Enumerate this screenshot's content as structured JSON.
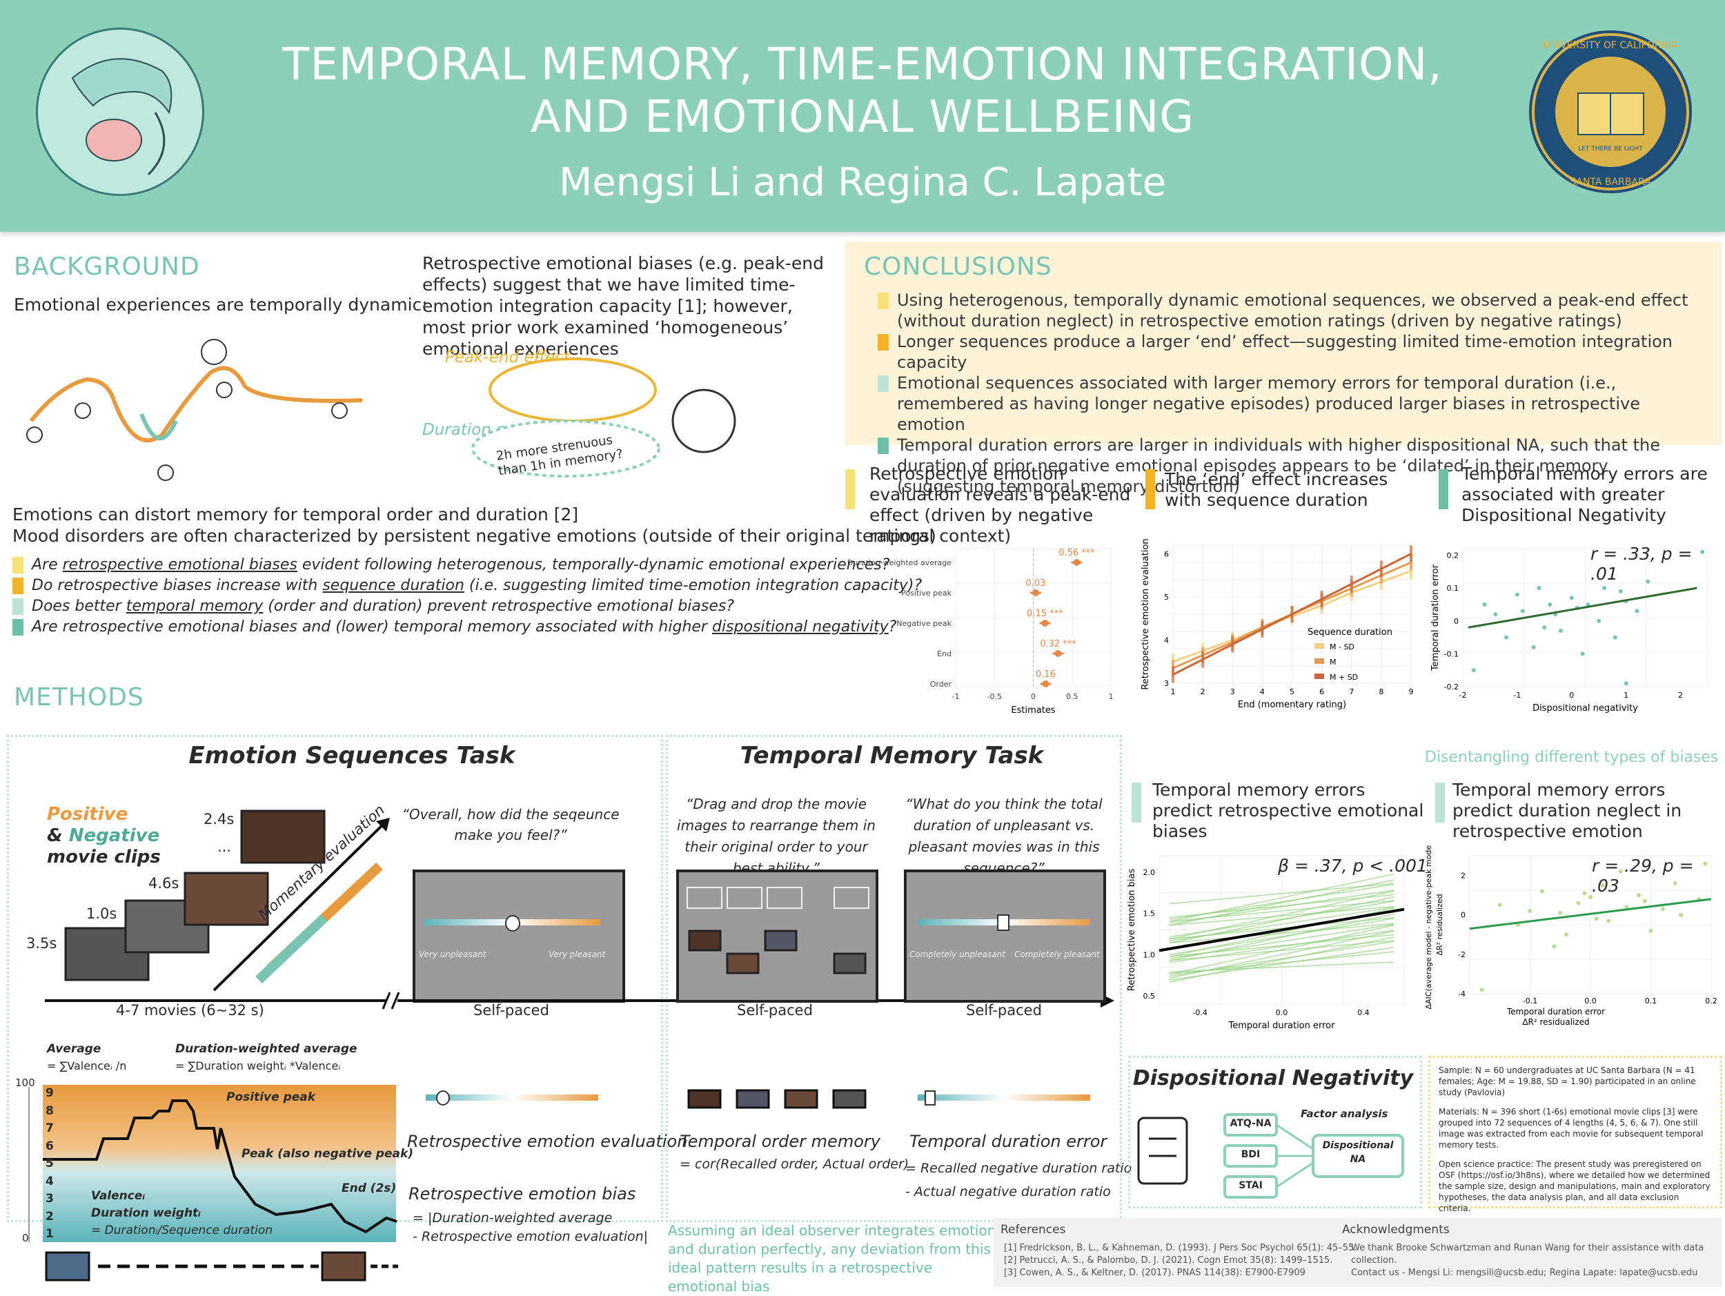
{
  "header": {
    "title_line1": "TEMPORAL MEMORY, TIME-EMOTION INTEGRATION,",
    "title_line2": "AND EMOTIONAL WELLBEING",
    "authors": "Mengsi Li and Regina C. Lapate",
    "seal_text_top": "UNIVERSITY OF CALIFORNIA",
    "seal_text_bottom": "SANTA BARBARA",
    "seal_banner": "LET THERE BE LIGHT"
  },
  "background": {
    "heading": "BACKGROUND",
    "intro": "Emotional experiences are temporally dynamic:",
    "right_text": "Retrospective emotional biases (e.g. peak-end effects) suggest that we have limited time-emotion integration capacity [1]; however, most prior work examined ‘homogeneous’ emotional experiences",
    "peak_end_label": "Peak-end effect",
    "duration_neglect_label": "Duration neglect",
    "bubble_text_1": "2h more strenuous",
    "bubble_text_2": "than 1h in memory?",
    "line1": "Emotions can distort memory for temporal order and duration [2]",
    "line2": "Mood disorders are often characterized by persistent negative emotions (outside of their original temporal context)",
    "questions": [
      {
        "color": "#f7e27a",
        "pre": "Are ",
        "u": "retrospective emotional biases",
        "post": " evident following heterogenous, temporally-dynamic emotional experiences?"
      },
      {
        "color": "#f2b32a",
        "pre": "Do retrospective biases increase with ",
        "u": "sequence duration",
        "post": " (i.e. suggesting limited time-emotion integration capacity)?"
      },
      {
        "color": "#bfe3d6",
        "pre": "Does better ",
        "u": "temporal memory",
        "post": " (order and duration) prevent retrospective emotional biases?"
      },
      {
        "color": "#6fbfa6",
        "pre": "Are retrospective emotional biases and (lower) temporal memory associated with higher ",
        "u": "dispositional negativity",
        "post": "?"
      }
    ]
  },
  "conclusions": {
    "heading": "CONCLUSIONS",
    "items": [
      {
        "color": "#f7e27a",
        "text": "Using heterogenous, temporally dynamic emotional sequences, we observed a peak-end effect (without duration neglect) in retrospective emotion ratings (driven by negative ratings)"
      },
      {
        "color": "#f2b32a",
        "text": "Longer sequences produce a larger ‘end’ effect—suggesting limited time-emotion integration capacity"
      },
      {
        "color": "#bfe3d6",
        "text": "Emotional sequences associated with larger memory errors for temporal duration (i.e., remembered as having longer negative episodes) produced larger biases in retrospective emotion"
      },
      {
        "color": "#6fbfa6",
        "text": "Temporal duration errors are larger in individuals with higher dispositional NA, such that the duration of prior negative emotional episodes appears to be ‘dilated’ in their memory (suggesting temporal memory distortion)"
      }
    ]
  },
  "results": {
    "r1_title": "Retrospective emotion evaluation reveals a peak-end effect (driven by negative ratings)",
    "r2_title": "The ‘end’ effect increases with sequence duration",
    "r3_title": "Temporal memory errors are associated with greater Dispositional Negativity",
    "r4_title": "Temporal memory errors predict retrospective emotional biases",
    "r5_title": "Temporal memory errors predict duration neglect in retrospective emotion",
    "disentangle": "Disentangling different types of biases",
    "r3_stat": "r = .33, p = .01",
    "r4_stat": "β = .37, p < .001",
    "r5_stat": "r = .29, p = .03"
  },
  "chart_data": [
    {
      "type": "scatter",
      "title": "",
      "xlabel": "Estimates",
      "ylabel": "",
      "xlim": [
        -1,
        1
      ],
      "categories": [
        "Duration-weighted average",
        "Positive peak",
        "Negative peak",
        "End",
        "Order"
      ],
      "values": [
        0.56,
        0.03,
        0.15,
        0.32,
        0.16
      ],
      "data_labels": [
        "0.56 ***",
        "0.03",
        "0.15 ***",
        "0.32 ***",
        "0.16"
      ],
      "xticks": [
        "-1",
        "-0.5",
        "0",
        "0.5",
        "1"
      ]
    },
    {
      "type": "line",
      "xlabel": "End (momentary rating)",
      "ylabel": "Retrospective emotion evaluation",
      "xlim": [
        1,
        9
      ],
      "ylim": [
        3,
        6.2
      ],
      "legend_title": "Sequence duration",
      "x": [
        1,
        2,
        3,
        4,
        5,
        6,
        7,
        8,
        9
      ],
      "series": [
        {
          "name": "M - SD",
          "color": "#f5cf83",
          "values": [
            3.5,
            3.75,
            4.0,
            4.3,
            4.55,
            4.8,
            5.1,
            5.35,
            5.6
          ]
        },
        {
          "name": "M",
          "color": "#e59a54",
          "values": [
            3.35,
            3.65,
            3.95,
            4.3,
            4.6,
            4.9,
            5.2,
            5.5,
            5.8
          ]
        },
        {
          "name": "M + SD",
          "color": "#c8673a",
          "values": [
            3.2,
            3.55,
            3.9,
            4.25,
            4.6,
            4.95,
            5.3,
            5.65,
            6.0
          ]
        }
      ]
    },
    {
      "type": "scatter",
      "xlabel": "Dispositional negativity",
      "ylabel": "Temporal duration error",
      "xlim": [
        -2,
        2.5
      ],
      "ylim": [
        -0.2,
        0.22
      ],
      "fit": {
        "x": [
          -1.9,
          2.3
        ],
        "y": [
          -0.02,
          0.1
        ]
      }
    },
    {
      "type": "line",
      "xlabel": "Temporal duration error",
      "ylabel": "Retrospective emotion bias",
      "xlim": [
        -0.6,
        0.6
      ],
      "ylim": [
        0.4,
        2.2
      ],
      "fit": {
        "x": [
          -0.6,
          0.6
        ],
        "y": [
          1.05,
          1.55
        ]
      }
    },
    {
      "type": "scatter",
      "xlabel": "Temporal duration error",
      "xlabel2": "ΔR² residualized",
      "ylabel": "ΔAIC(average model - negative-peak model)",
      "ylabel2": "ΔR² residualized",
      "xlim": [
        -0.2,
        0.2
      ],
      "ylim": [
        -4,
        3
      ],
      "fit": {
        "x": [
          -0.2,
          0.2
        ],
        "y": [
          -0.7,
          0.8
        ]
      }
    }
  ],
  "methods": {
    "heading": "METHODS",
    "task1_title": "Emotion Sequences Task",
    "task2_title": "Temporal Memory Task",
    "positive": "Positive",
    "and": "& ",
    "negative": "Negative",
    "movie_clips": "movie clips",
    "durations": [
      "3.5s",
      "1.0s",
      "4.6s",
      "2.4s",
      "..."
    ],
    "momentary": "Momentary evaluation",
    "question1": "“Overall, how did the seqeunce make you feel?”",
    "very_unpleasant": "Very unpleasant",
    "very_pleasant": "Very pleasant",
    "movies_count": "4-7 movies (6~32 s)",
    "self_paced": "Self-paced",
    "drag_text": "“Drag and drop the movie images to rearrange them in their original order to your best ability.”",
    "duration_q": "“What do you think the total duration of unpleasant vs. pleasant movies was in this sequence?”",
    "completely_unpleasant": "Completely unpleasant",
    "completely_pleasant": "Completely pleasant",
    "average_label": "Average",
    "average_formula": "= ∑Valenceᵢ /n",
    "dw_label": "Duration-weighted average",
    "dw_formula": "= ∑Duration weightᵢ *Valenceᵢ",
    "y100": "100",
    "y0": "0",
    "scale": [
      "9",
      "8",
      "7",
      "6",
      "5",
      "4",
      "3",
      "2",
      "1"
    ],
    "positive_peak": "Positive peak",
    "peak_neg": "Peak (also negative peak)",
    "end_label": "End (2s)",
    "valence_i": "Valenceᵢ",
    "duration_weight": "Duration weightᵢ",
    "dw_eq": "= Durationᵢ/Sequence duration",
    "ree": "Retrospective emotion evaluation",
    "reb": "Retrospective emotion bias",
    "reb_eq1": "= |Duration-weighted average",
    "reb_eq2": "- Retrospective emotion evaluation|",
    "tom": "Temporal order memory",
    "tom_eq": "= cor(Recalled order, Actual order)",
    "tde": "Temporal duration error",
    "tde_eq1": "= Recalled negative duration ratio",
    "tde_eq2": "- Actual negative duration ratio",
    "assume": "Assuming an ideal observer integrates emotion and duration perfectly, any deviation from this ideal pattern results in a retrospective emotional bias"
  },
  "disp": {
    "title": "Dispositional Negativity",
    "factor": "Factor analysis",
    "scales": [
      "ATQ-NA",
      "BDI",
      "STAI"
    ],
    "result": "Dispositional NA"
  },
  "notes": {
    "sample": "Sample: N = 60 undergraduates at UC Santa Barbara (N = 41 females; Age: M = 19.88, SD = 1.90) participated in an online study (Pavlovia)",
    "materials": "Materials: N = 396 short (1-6s) emotional movie clips [3] were grouped into 72 sequences of 4 lengths (4, 5, 6, & 7). One still image was extracted from each movie for subsequent temporal memory tests.",
    "open_science": "Open science practice: The present study was preregistered on OSF (https://osf.io/3h8ns), where we detailed how we determined the sample size, design and manipulations, main and exploratory hypotheses, the data analysis plan, and all data exclusion criteria."
  },
  "references": {
    "heading": "References",
    "items": [
      "[1] Fredrickson, B. L., & Kahneman, D. (1993). J Pers Soc Psychol 65(1): 45–55.",
      "[2] Petrucci, A. S., & Palombo, D. J. (2021). Cogn Emot 35(8): 1499–1515.",
      "[3] Cowen, A. S., & Keltner, D. (2017). PNAS 114(38): E7900-E7909"
    ]
  },
  "ack": {
    "heading": "Acknowledgments",
    "line1": "We thank Brooke Schwartzman and Runan Wang for their assistance with data collection.",
    "line2": "Contact us - Mengsi Li: mengsili@ucsb.edu; Regina Lapate: lapate@ucsb.edu"
  }
}
